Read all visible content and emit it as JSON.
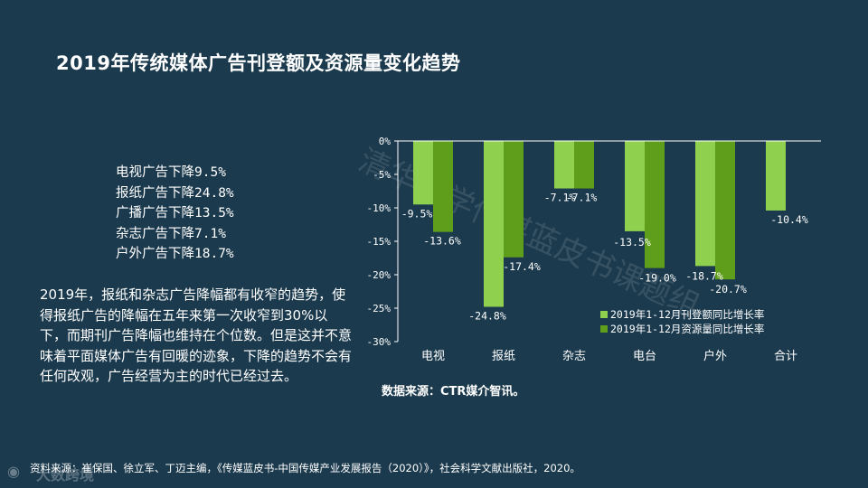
{
  "title": "2019年传统媒体广告刊登额及资源量变化趋势",
  "summary_lines": [
    "电视广告下降9.5%",
    "报纸广告下降24.8%",
    "广播广告下降13.5%",
    "杂志广告下降7.1%",
    "户外广告下降18.7%"
  ],
  "paragraph": "2019年，报纸和杂志广告降幅都有收窄的趋势，使得报纸广告的降幅在五年来第一次收窄到30%以下，而期刊广告降幅也维持在个位数。但是这并不意味着平面媒体广告有回暖的迹象，下降的趋势不会有任何改观，广告经营为主的时代已经过去。",
  "source_note": "数据来源：CTR媒介智讯。",
  "footer": "资料来源：崔保国、徐立军、丁迈主编，《传媒蓝皮书-中国传媒产业发展报告（2020）》，社会科学文献出版社，2020。",
  "watermark": "清华大学传媒蓝皮书课题组",
  "logo_text": "大数跨境",
  "colors": {
    "background": "#1b3a4d",
    "series_light": "#8fd14f",
    "series_dark": "#5f9e1a",
    "text": "#ffffff"
  },
  "chart_data": {
    "type": "bar",
    "categories": [
      "电视",
      "报纸",
      "杂志",
      "电台",
      "户外",
      "合计"
    ],
    "series": [
      {
        "name": "2019年1-12月刊登额同比增长率",
        "values": [
          -9.5,
          -24.8,
          -7.1,
          -13.5,
          -18.7,
          -10.4
        ],
        "labels": [
          "-9.5%",
          "-24.8%",
          "-7.1%",
          "-13.5%",
          "-18.7%",
          "-10.4%"
        ],
        "color": "#8fd14f"
      },
      {
        "name": "2019年1-12月资源量同比增长率",
        "values": [
          -13.6,
          -17.4,
          -7.1,
          -19.0,
          -20.7,
          null
        ],
        "labels": [
          "-13.6%",
          "-17.4%",
          "-7.1%",
          "-19.0%",
          "-20.7%",
          null
        ],
        "color": "#5f9e1a"
      }
    ],
    "yticks": [
      "0%",
      "-5%",
      "-10%",
      "-15%",
      "-20%",
      "-25%",
      "-30%"
    ],
    "ylim": [
      -30,
      0
    ],
    "legend_position": "bottom-right",
    "grid": false
  }
}
